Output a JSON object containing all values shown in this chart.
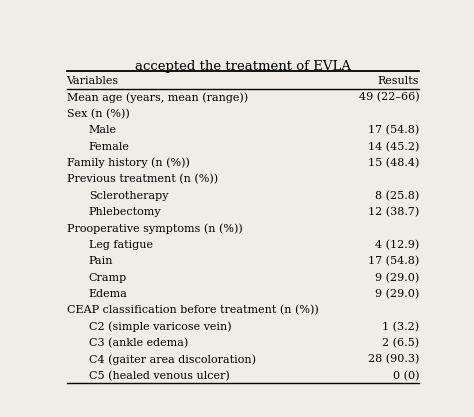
{
  "title": "accepted the treatment of EVLA",
  "col_headers": [
    "Variables",
    "Results"
  ],
  "rows": [
    {
      "label": "Mean age (years, mean (range))",
      "value": "49 (22–66)",
      "indent": 0
    },
    {
      "label": "Sex (n (%))",
      "value": "",
      "indent": 0
    },
    {
      "label": "Male",
      "value": "17 (54.8)",
      "indent": 1
    },
    {
      "label": "Female",
      "value": "14 (45.2)",
      "indent": 1
    },
    {
      "label": "Family history (n (%))",
      "value": "15 (48.4)",
      "indent": 0
    },
    {
      "label": "Previous treatment (n (%))",
      "value": "",
      "indent": 0
    },
    {
      "label": "Sclerotherapy",
      "value": "8 (25.8)",
      "indent": 1
    },
    {
      "label": "Phlebectomy",
      "value": "12 (38.7)",
      "indent": 1
    },
    {
      "label": "Prooperative symptoms (n (%))",
      "value": "",
      "indent": 0
    },
    {
      "label": "Leg fatigue",
      "value": "4 (12.9)",
      "indent": 1
    },
    {
      "label": "Pain",
      "value": "17 (54.8)",
      "indent": 1
    },
    {
      "label": "Cramp",
      "value": "9 (29.0)",
      "indent": 1
    },
    {
      "label": "Edema",
      "value": "9 (29.0)",
      "indent": 1
    },
    {
      "label": "CEAP classification before treatment (n (%))",
      "value": "",
      "indent": 0
    },
    {
      "label": "C2 (simple varicose vein)",
      "value": "1 (3.2)",
      "indent": 1
    },
    {
      "label": "C3 (ankle edema)",
      "value": "2 (6.5)",
      "indent": 1
    },
    {
      "label": "C4 (gaiter area discoloration)",
      "value": "28 (90.3)",
      "indent": 1
    },
    {
      "label": "C5 (healed venous ulcer)",
      "value": "0 (0)",
      "indent": 1
    }
  ],
  "bg_color": "#f0ede8",
  "header_line_color": "#000000",
  "text_color": "#000000",
  "font_size": 8.0,
  "title_font_size": 9.5,
  "indent_amount": 0.06
}
